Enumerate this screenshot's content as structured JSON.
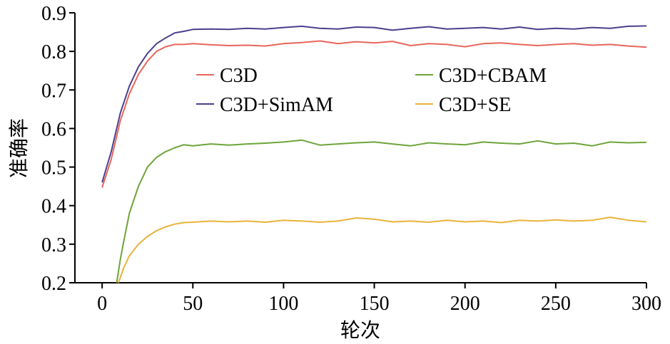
{
  "chart_data": {
    "type": "line",
    "title": "",
    "xlabel": "轮次",
    "ylabel": "准确率",
    "xlim": [
      -15,
      300
    ],
    "ylim": [
      0.2,
      0.9
    ],
    "xticks": [
      0,
      50,
      100,
      150,
      200,
      250,
      300
    ],
    "yticks": [
      0.2,
      0.3,
      0.4,
      0.5,
      0.6,
      0.7,
      0.8,
      0.9
    ],
    "xtick_labels": [
      "0",
      "50",
      "100",
      "150",
      "200",
      "250",
      "300"
    ],
    "ytick_labels": [
      "0.2",
      "0.3",
      "0.4",
      "0.5",
      "0.6",
      "0.7",
      "0.8",
      "0.9"
    ],
    "grid": false,
    "legend": "inside, upper center, two columns",
    "series": [
      {
        "name": "C3D",
        "color": "#e8655b",
        "x": [
          0,
          5,
          10,
          15,
          20,
          25,
          30,
          35,
          40,
          45,
          50,
          60,
          70,
          80,
          90,
          100,
          110,
          120,
          130,
          140,
          150,
          160,
          170,
          180,
          190,
          200,
          210,
          220,
          230,
          240,
          250,
          260,
          270,
          280,
          290,
          300
        ],
        "y": [
          0.447,
          0.52,
          0.62,
          0.69,
          0.74,
          0.775,
          0.8,
          0.812,
          0.818,
          0.818,
          0.82,
          0.817,
          0.815,
          0.816,
          0.814,
          0.82,
          0.823,
          0.827,
          0.82,
          0.825,
          0.822,
          0.826,
          0.815,
          0.82,
          0.818,
          0.812,
          0.82,
          0.822,
          0.818,
          0.815,
          0.818,
          0.82,
          0.816,
          0.818,
          0.814,
          0.811
        ]
      },
      {
        "name": "C3D+CBAM",
        "color": "#6ea43a",
        "x": [
          8,
          10,
          12,
          15,
          20,
          25,
          30,
          35,
          40,
          45,
          50,
          60,
          70,
          80,
          90,
          100,
          110,
          120,
          130,
          140,
          150,
          160,
          170,
          180,
          190,
          200,
          210,
          220,
          230,
          240,
          250,
          260,
          270,
          280,
          290,
          300
        ],
        "y": [
          0.2,
          0.26,
          0.31,
          0.38,
          0.45,
          0.5,
          0.525,
          0.54,
          0.55,
          0.558,
          0.555,
          0.56,
          0.557,
          0.56,
          0.562,
          0.565,
          0.57,
          0.557,
          0.56,
          0.563,
          0.565,
          0.56,
          0.555,
          0.563,
          0.56,
          0.558,
          0.565,
          0.562,
          0.56,
          0.568,
          0.56,
          0.562,
          0.555,
          0.565,
          0.563,
          0.564
        ]
      },
      {
        "name": "C3D+SimAM",
        "color": "#4b3f8c",
        "x": [
          0,
          5,
          10,
          15,
          20,
          25,
          30,
          35,
          40,
          45,
          50,
          60,
          70,
          80,
          90,
          100,
          110,
          120,
          130,
          140,
          150,
          160,
          170,
          180,
          190,
          200,
          210,
          220,
          230,
          240,
          250,
          260,
          270,
          280,
          290,
          300
        ],
        "y": [
          0.46,
          0.54,
          0.64,
          0.71,
          0.76,
          0.795,
          0.82,
          0.835,
          0.848,
          0.852,
          0.857,
          0.858,
          0.857,
          0.86,
          0.858,
          0.862,
          0.865,
          0.86,
          0.858,
          0.863,
          0.862,
          0.855,
          0.86,
          0.864,
          0.858,
          0.86,
          0.862,
          0.858,
          0.863,
          0.857,
          0.86,
          0.858,
          0.862,
          0.86,
          0.865,
          0.866
        ]
      },
      {
        "name": "C3D+SE",
        "color": "#e8b43a",
        "x": [
          9,
          12,
          15,
          20,
          25,
          30,
          35,
          40,
          45,
          50,
          60,
          70,
          80,
          90,
          100,
          110,
          120,
          130,
          140,
          150,
          160,
          170,
          180,
          190,
          200,
          210,
          220,
          230,
          240,
          250,
          260,
          270,
          280,
          290,
          300
        ],
        "y": [
          0.2,
          0.24,
          0.27,
          0.3,
          0.32,
          0.335,
          0.345,
          0.352,
          0.356,
          0.357,
          0.36,
          0.358,
          0.36,
          0.357,
          0.362,
          0.36,
          0.357,
          0.36,
          0.368,
          0.365,
          0.358,
          0.36,
          0.357,
          0.362,
          0.358,
          0.36,
          0.356,
          0.362,
          0.36,
          0.363,
          0.36,
          0.362,
          0.37,
          0.362,
          0.358
        ]
      }
    ]
  }
}
